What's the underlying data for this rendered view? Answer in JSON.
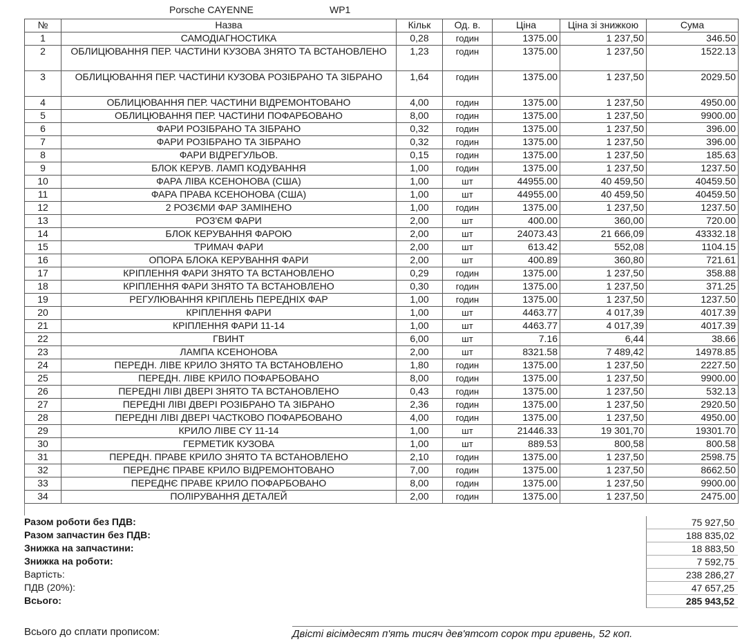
{
  "header": {
    "model": "Porsche  CAYENNE",
    "code": "WP1"
  },
  "columns": [
    "№",
    "Назва",
    "Кільк",
    "Од. в.",
    "Ціна",
    "Ціна зі знижкою",
    "Сума"
  ],
  "rows": [
    [
      "1",
      "САМОДІАГНОСТИКА",
      "0,28",
      "годин",
      "1375.00",
      "1 237,50",
      "346.50"
    ],
    [
      "2",
      "ОБЛИЦЮВАННЯ ПЕР. ЧАСТИНИ КУЗОВА ЗНЯТО ТА ВСТАНОВЛЕНО",
      "1,23",
      "годин",
      "1375.00",
      "1 237,50",
      "1522.13"
    ],
    [
      "3",
      "ОБЛИЦЮВАННЯ ПЕР. ЧАСТИНИ КУЗОВА РОЗІБРАНО ТА ЗІБРАНО",
      "1,64",
      "годин",
      "1375.00",
      "1 237,50",
      "2029.50"
    ],
    [
      "4",
      "ОБЛИЦЮВАННЯ ПЕР. ЧАСТИНИ ВІДРЕМОНТОВАНО",
      "4,00",
      "годин",
      "1375.00",
      "1 237,50",
      "4950.00"
    ],
    [
      "5",
      "ОБЛИЦЮВАННЯ ПЕР. ЧАСТИНИ ПОФАРБОВАНО",
      "8,00",
      "годин",
      "1375.00",
      "1 237,50",
      "9900.00"
    ],
    [
      "6",
      "ФАРИ РОЗІБРАНО ТА ЗІБРАНО",
      "0,32",
      "годин",
      "1375.00",
      "1 237,50",
      "396.00"
    ],
    [
      "7",
      "ФАРИ РОЗІБРАНО ТА ЗІБРАНО",
      "0,32",
      "годин",
      "1375.00",
      "1 237,50",
      "396.00"
    ],
    [
      "8",
      "ФАРИ ВІДРЕГУЛЬОВ.",
      "0,15",
      "годин",
      "1375.00",
      "1 237,50",
      "185.63"
    ],
    [
      "9",
      "БЛОК КЕРУВ. ЛАМП КОДУВАННЯ",
      "1,00",
      "годин",
      "1375.00",
      "1 237,50",
      "1237.50"
    ],
    [
      "10",
      "ФАРА ЛІВА КСЕНОНОВА (США)",
      "1,00",
      "шт",
      "44955.00",
      "40 459,50",
      "40459.50"
    ],
    [
      "11",
      "ФАРА ПРАВА КСЕНОНОВА (США)",
      "1,00",
      "шт",
      "44955.00",
      "40 459,50",
      "40459.50"
    ],
    [
      "12",
      "2 РОЗЄМИ ФАР ЗАМІНЕНО",
      "1,00",
      "годин",
      "1375.00",
      "1 237,50",
      "1237.50"
    ],
    [
      "13",
      "РОЗ'ЄМ ФАРИ",
      "2,00",
      "шт",
      "400.00",
      "360,00",
      "720.00"
    ],
    [
      "14",
      "БЛОК КЕРУВАННЯ ФАРОЮ",
      "2,00",
      "шт",
      "24073.43",
      "21 666,09",
      "43332.18"
    ],
    [
      "15",
      "ТРИМАЧ ФАРИ",
      "2,00",
      "шт",
      "613.42",
      "552,08",
      "1104.15"
    ],
    [
      "16",
      "ОПОРА БЛОКА КЕРУВАННЯ ФАРИ",
      "2,00",
      "шт",
      "400.89",
      "360,80",
      "721.61"
    ],
    [
      "17",
      "КРІПЛЕННЯ ФАРИ ЗНЯТО ТА ВСТАНОВЛЕНО",
      "0,29",
      "годин",
      "1375.00",
      "1 237,50",
      "358.88"
    ],
    [
      "18",
      "КРІПЛЕННЯ ФАРИ ЗНЯТО ТА ВСТАНОВЛЕНО",
      "0,30",
      "годин",
      "1375.00",
      "1 237,50",
      "371.25"
    ],
    [
      "19",
      "РЕГУЛЮВАННЯ КРІПЛЕНЬ ПЕРЕДНІХ ФАР",
      "1,00",
      "годин",
      "1375.00",
      "1 237,50",
      "1237.50"
    ],
    [
      "20",
      "КРІПЛЕННЯ ФАРИ",
      "1,00",
      "шт",
      "4463.77",
      "4 017,39",
      "4017.39"
    ],
    [
      "21",
      "КРІПЛЕННЯ ФАРИ 11-14",
      "1,00",
      "шт",
      "4463.77",
      "4 017,39",
      "4017.39"
    ],
    [
      "22",
      "ГВИНТ",
      "6,00",
      "шт",
      "7.16",
      "6,44",
      "38.66"
    ],
    [
      "23",
      "ЛАМПА КСЕНОНОВА",
      "2,00",
      "шт",
      "8321.58",
      "7 489,42",
      "14978.85"
    ],
    [
      "24",
      "ПЕРЕДН. ЛІВЕ КРИЛО ЗНЯТО ТА ВСТАНОВЛЕНО",
      "1,80",
      "годин",
      "1375.00",
      "1 237,50",
      "2227.50"
    ],
    [
      "25",
      "ПЕРЕДН. ЛІВЕ КРИЛО ПОФАРБОВАНО",
      "8,00",
      "годин",
      "1375.00",
      "1 237,50",
      "9900.00"
    ],
    [
      "26",
      "ПЕРЕДНІ ЛІВІ ДВЕРІ ЗНЯТО ТА ВСТАНОВЛЕНО",
      "0,43",
      "годин",
      "1375.00",
      "1 237,50",
      "532.13"
    ],
    [
      "27",
      "ПЕРЕДНІ ЛІВІ ДВЕРІ РОЗІБРАНО ТА ЗІБРАНО",
      "2,36",
      "годин",
      "1375.00",
      "1 237,50",
      "2920.50"
    ],
    [
      "28",
      "ПЕРЕДНІ ЛІВІ ДВЕРІ ЧАСТКОВО ПОФАРБОВАНО",
      "4,00",
      "годин",
      "1375.00",
      "1 237,50",
      "4950.00"
    ],
    [
      "29",
      "КРИЛО ЛІВЕ CY 11-14",
      "1,00",
      "шт",
      "21446.33",
      "19 301,70",
      "19301.70"
    ],
    [
      "30",
      "ГЕРМЕТИК КУЗОВА",
      "1,00",
      "шт",
      "889.53",
      "800,58",
      "800.58"
    ],
    [
      "31",
      "ПЕРЕДН. ПРАВЕ КРИЛО ЗНЯТО ТА ВСТАНОВЛЕНО",
      "2,10",
      "годин",
      "1375.00",
      "1 237,50",
      "2598.75"
    ],
    [
      "32",
      "ПЕРЕДНЄ ПРАВЕ КРИЛО ВІДРЕМОНТОВАНО",
      "7,00",
      "годин",
      "1375.00",
      "1 237,50",
      "8662.50"
    ],
    [
      "33",
      "ПЕРЕДНЄ ПРАВЕ КРИЛО ПОФАРБОВАНО",
      "8,00",
      "годин",
      "1375.00",
      "1 237,50",
      "9900.00"
    ],
    [
      "34",
      "ПОЛІРУВАННЯ ДЕТАЛЕЙ",
      "2,00",
      "годин",
      "1375.00",
      "1 237,50",
      "2475.00"
    ]
  ],
  "totals": [
    {
      "label": "Разом роботи без ПДВ:",
      "value": "75 927,50",
      "bold": true
    },
    {
      "label": "Разом запчастин без ПДВ:",
      "value": "188 835,02",
      "bold": true
    },
    {
      "label": "Знижка на запчастини:",
      "value": "18 883,50",
      "bold": true
    },
    {
      "label": "Знижка на роботи:",
      "value": "7 592,75",
      "bold": true
    },
    {
      "label": "Вартість:",
      "value": "238 286,27",
      "bold": false
    },
    {
      "label": "ПДВ (20%):",
      "value": "47 657,25",
      "bold": false
    },
    {
      "label": "Всього:",
      "value": "285 943,52",
      "bold": true
    }
  ],
  "in_words": {
    "label": "Всього до сплати прописом:",
    "value": "Двісті вісімдесят п'ять тисяч дев'ятсот сорок три гривень, 52 коп."
  }
}
